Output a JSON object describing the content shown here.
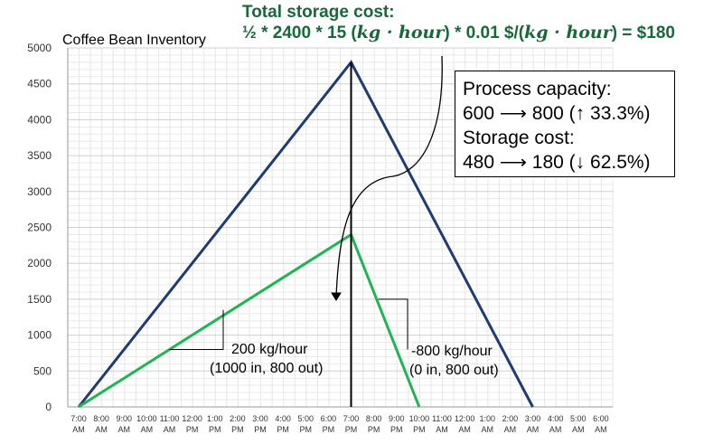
{
  "formula": {
    "title": "Total storage cost:",
    "part1": "½ * 2400 * 15 (",
    "math1": "kg · hour",
    "part2": ") * 0.01 $/(",
    "math2": "kg · hour",
    "part3": ") = $180"
  },
  "info_box": {
    "line1": "Process capacity:",
    "line2": "600 ⟶ 800 (↑ 33.3%)",
    "line3": "Storage cost:",
    "line4": "480 ⟶ 180 (↓ 62.5%)"
  },
  "annotations": {
    "in_rate_line1": "200 kg/hour",
    "in_rate_line2": "(1000 in, 800 out)",
    "out_rate_line1": "-800 kg/hour",
    "out_rate_line2": "(0 in, 800 out)"
  },
  "chart_data": {
    "type": "line",
    "title": "Coffee Bean Inventory",
    "xlabel": "",
    "ylabel": "",
    "ylim": [
      0,
      5000
    ],
    "yticks": [
      0,
      500,
      1000,
      1500,
      2000,
      2500,
      3000,
      3500,
      4000,
      4500,
      5000
    ],
    "x": [
      "7:00 AM",
      "8:00 AM",
      "9:00 AM",
      "10:00 AM",
      "11:00 AM",
      "12:00 PM",
      "1:00 PM",
      "2:00 PM",
      "3:00 PM",
      "4:00 PM",
      "5:00 PM",
      "6:00 PM",
      "7:00 PM",
      "8:00 PM",
      "9:00 PM",
      "10:00 PM",
      "11:00 AM",
      "12:00 AM",
      "1:00 AM",
      "2:00 AM",
      "3:00 AM",
      "4:00 AM",
      "5:00 AM",
      "6:00 AM"
    ],
    "x_tick_time": [
      "7:00",
      "8:00",
      "9:00",
      "10:00",
      "11:00",
      "12:00",
      "1:00",
      "2:00",
      "3:00",
      "4:00",
      "5:00",
      "6:00",
      "7:00",
      "8:00",
      "9:00",
      "10:00",
      "11:00",
      "12:00",
      "1:00",
      "2:00",
      "3:00",
      "4:00",
      "5:00",
      "6:00"
    ],
    "x_tick_ampm": [
      "AM",
      "AM",
      "AM",
      "AM",
      "AM",
      "PM",
      "PM",
      "PM",
      "PM",
      "PM",
      "PM",
      "PM",
      "PM",
      "PM",
      "PM",
      "PM",
      "AM",
      "AM",
      "AM",
      "AM",
      "AM",
      "AM",
      "AM",
      "AM"
    ],
    "series": [
      {
        "color": "#1f3b73",
        "points": [
          [
            0,
            0
          ],
          [
            12,
            4800
          ],
          [
            20,
            0
          ]
        ]
      },
      {
        "color": "#1fb552",
        "points": [
          [
            0,
            0
          ],
          [
            12,
            2400
          ],
          [
            15,
            0
          ]
        ]
      }
    ],
    "vline_x": 12,
    "grid": true
  }
}
